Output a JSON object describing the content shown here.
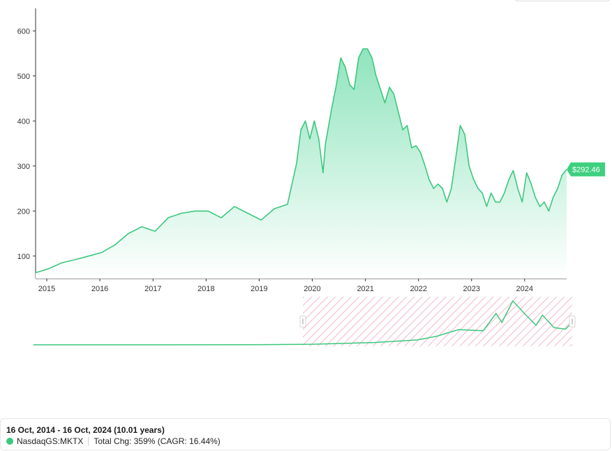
{
  "colors": {
    "line": "#3cc77e",
    "area_top": "#8fe4bd",
    "area_bottom": "#ffffff",
    "tag": "#3dd07f",
    "axis": "#333333",
    "selection_hatch": "#f2b8cb",
    "handle": "#d5d5d5"
  },
  "chart_data": {
    "type": "area",
    "ticker": "NasdaqGS:MKTX",
    "x": [
      "2014-10-16",
      "2015-01-15",
      "2015-04-15",
      "2015-07-15",
      "2015-10-15",
      "2016-01-15",
      "2016-04-15",
      "2016-07-15",
      "2016-10-15",
      "2017-01-15",
      "2017-04-15",
      "2017-07-15",
      "2017-10-15",
      "2018-01-15",
      "2018-04-15",
      "2018-07-15",
      "2018-10-15",
      "2019-01-15",
      "2019-04-15",
      "2019-07-15",
      "2019-09-15",
      "2019-10-15",
      "2019-11-15",
      "2019-12-15",
      "2020-01-15",
      "2020-02-15",
      "2020-03-15",
      "2020-04-01",
      "2020-05-15",
      "2020-06-15",
      "2020-07-15",
      "2020-08-15",
      "2020-09-15",
      "2020-10-15",
      "2020-11-15",
      "2020-12-15",
      "2021-01-15",
      "2021-02-15",
      "2021-03-15",
      "2021-04-15",
      "2021-05-15",
      "2021-06-15",
      "2021-07-15",
      "2021-08-15",
      "2021-09-15",
      "2021-10-15",
      "2021-11-15",
      "2021-12-15",
      "2022-01-15",
      "2022-02-15",
      "2022-03-15",
      "2022-04-15",
      "2022-05-15",
      "2022-06-15",
      "2022-07-15",
      "2022-08-15",
      "2022-09-15",
      "2022-10-15",
      "2022-11-15",
      "2022-12-15",
      "2023-01-15",
      "2023-02-15",
      "2023-03-15",
      "2023-04-15",
      "2023-05-15",
      "2023-06-15",
      "2023-07-15",
      "2023-08-15",
      "2023-09-15",
      "2023-10-15",
      "2023-11-15",
      "2023-12-15",
      "2024-01-15",
      "2024-02-15",
      "2024-03-15",
      "2024-04-15",
      "2024-05-15",
      "2024-06-15",
      "2024-07-15",
      "2024-08-15",
      "2024-09-15",
      "2024-10-16"
    ],
    "y": [
      63,
      72,
      85,
      92,
      100,
      108,
      125,
      150,
      165,
      155,
      185,
      195,
      200,
      200,
      185,
      210,
      195,
      180,
      205,
      215,
      305,
      380,
      400,
      360,
      400,
      360,
      285,
      350,
      430,
      480,
      540,
      520,
      480,
      470,
      540,
      560,
      560,
      540,
      500,
      470,
      440,
      475,
      460,
      420,
      380,
      390,
      340,
      345,
      330,
      300,
      270,
      250,
      260,
      250,
      220,
      250,
      320,
      390,
      370,
      300,
      270,
      250,
      240,
      210,
      240,
      220,
      220,
      240,
      270,
      290,
      250,
      220,
      285,
      260,
      230,
      210,
      220,
      200,
      230,
      250,
      280,
      292.46
    ],
    "ylim": [
      50,
      650
    ],
    "yticks": [
      100,
      200,
      300,
      400,
      500,
      600
    ],
    "xticks": [
      "2015",
      "2016",
      "2017",
      "2018",
      "2019",
      "2020",
      "2021",
      "2022",
      "2023",
      "2024"
    ],
    "xtick_dates": [
      "2015-01-01",
      "2016-01-01",
      "2017-01-01",
      "2018-01-01",
      "2019-01-01",
      "2020-01-01",
      "2021-01-01",
      "2022-01-01",
      "2023-01-01",
      "2024-01-01"
    ],
    "last_value_label": "$292.46",
    "grid": false,
    "navigator": {
      "visible_start": "2014-10-16",
      "visible_end": "2024-10-16",
      "selection_fraction": [
        0.5,
        1.0
      ],
      "x_labels": [],
      "context_x": [
        "1990-01-01",
        "1998-01-01",
        "2004-01-01",
        "2008-01-01",
        "2012-01-01",
        "2014-10-16",
        "2016-01-15",
        "2017-06-15",
        "2019-01-15",
        "2019-11-15",
        "2020-04-01",
        "2020-12-15",
        "2021-09-15",
        "2022-06-15",
        "2022-11-15",
        "2023-08-15",
        "2024-05-15",
        "2024-10-16"
      ],
      "context_y": [
        1,
        1,
        2,
        8,
        30,
        63,
        110,
        195,
        180,
        400,
        285,
        560,
        400,
        250,
        380,
        220,
        200,
        292
      ]
    }
  },
  "summary": {
    "date_range": "16 Oct, 2014 - 16 Oct, 2024 (10.01 years)",
    "ticker": "NasdaqGS:MKTX",
    "total_change": "Total Chg: 359% (CAGR: 16.44%)"
  }
}
